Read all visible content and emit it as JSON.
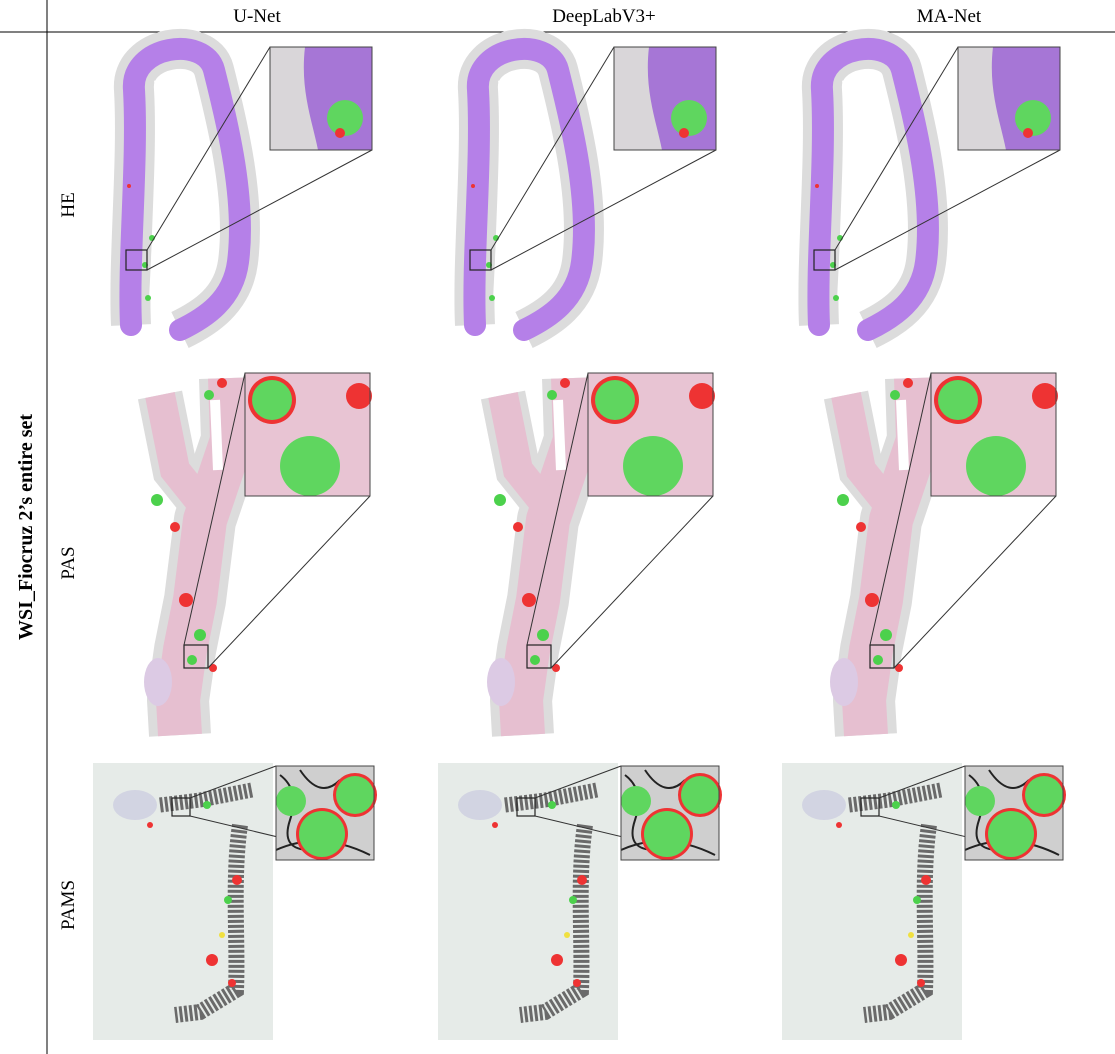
{
  "figure": {
    "columns": [
      "U-Net",
      "DeepLabV3+",
      "MA-Net"
    ],
    "rows": [
      "HE",
      "PAS",
      "PAMS"
    ],
    "side_label": "WSI_Fiocruz 2’s entire set"
  }
}
